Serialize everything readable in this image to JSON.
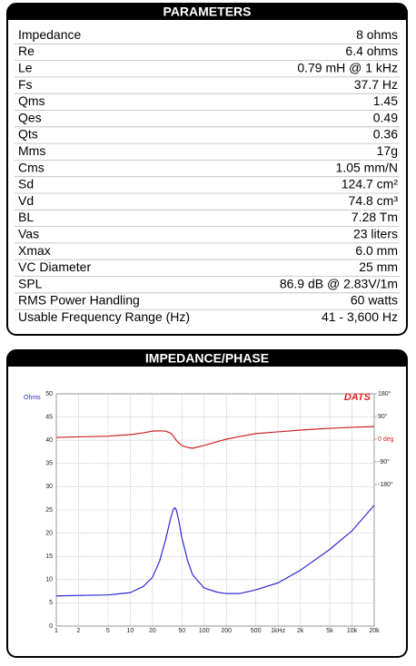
{
  "parameters": {
    "title": "PARAMETERS",
    "rows": [
      [
        "Impedance",
        "8 ohms"
      ],
      [
        "Re",
        "6.4 ohms"
      ],
      [
        "Le",
        "0.79 mH @ 1 kHz"
      ],
      [
        "Fs",
        "37.7 Hz"
      ],
      [
        "Qms",
        "1.45"
      ],
      [
        "Qes",
        "0.49"
      ],
      [
        "Qts",
        "0.36"
      ],
      [
        "Mms",
        "17g"
      ],
      [
        "Cms",
        "1.05 mm/N"
      ],
      [
        "Sd",
        "124.7 cm²"
      ],
      [
        "Vd",
        "74.8 cm³"
      ],
      [
        "BL",
        "7.28 Tm"
      ],
      [
        "Vas",
        "23 liters"
      ],
      [
        "Xmax",
        "6.0 mm"
      ],
      [
        "VC Diameter",
        "25 mm"
      ],
      [
        "SPL",
        "86.9 dB @ 2.83V/1m"
      ],
      [
        "RMS Power Handling",
        "60 watts"
      ],
      [
        "Usable Frequency Range (Hz)",
        "41 - 3,600 Hz"
      ]
    ]
  },
  "chart_data": {
    "type": "line",
    "title": "IMPEDANCE/PHASE",
    "logo": "DATS",
    "ylabel": "Ohms",
    "xscale": "log",
    "x": [
      1,
      5,
      10,
      15,
      20,
      25,
      30,
      35,
      38,
      40,
      42,
      45,
      50,
      60,
      70,
      100,
      150,
      200,
      300,
      500,
      1000,
      2000,
      5000,
      10000,
      20000
    ],
    "xlim": [
      1,
      20000
    ],
    "xticks": [
      1,
      2,
      5,
      10,
      20,
      50,
      100,
      200,
      500,
      {
        "value": 1000,
        "label": "1kHz"
      },
      {
        "value": 2000,
        "label": "2k"
      },
      {
        "value": 5000,
        "label": "5k"
      },
      {
        "value": 10000,
        "label": "10k"
      },
      {
        "value": 20000,
        "label": "20k"
      }
    ],
    "ylim": [
      0,
      50
    ],
    "yticks": [
      0,
      5,
      10,
      15,
      20,
      25,
      30,
      35,
      40,
      45,
      50
    ],
    "y2lim": [
      -741.6,
      180
    ],
    "y2ticks": [
      {
        "value": 180,
        "label": "180°"
      },
      {
        "value": 90,
        "label": "90°"
      },
      {
        "value": 0,
        "label": "0 deg"
      },
      {
        "value": -90,
        "label": "-90°"
      },
      {
        "value": -180,
        "label": "-180°"
      }
    ],
    "grid": true,
    "series": [
      {
        "color": "#2b2bd8",
        "values": [
          6.5,
          6.7,
          7.2,
          8.5,
          10.5,
          14,
          18.5,
          23,
          25,
          25.5,
          25,
          23,
          19,
          14,
          11,
          8.2,
          7.3,
          7,
          7,
          7.8,
          9.3,
          12,
          16.5,
          20.5,
          26
        ]
      },
      {
        "color": "#cc2222",
        "axis": "y2",
        "values": [
          7,
          12,
          18,
          25,
          32,
          33,
          32,
          24,
          14,
          4,
          -4,
          -14,
          -25,
          -33,
          -36,
          -25,
          -10,
          0,
          10,
          22,
          29,
          36,
          43,
          47,
          50
        ]
      }
    ]
  }
}
